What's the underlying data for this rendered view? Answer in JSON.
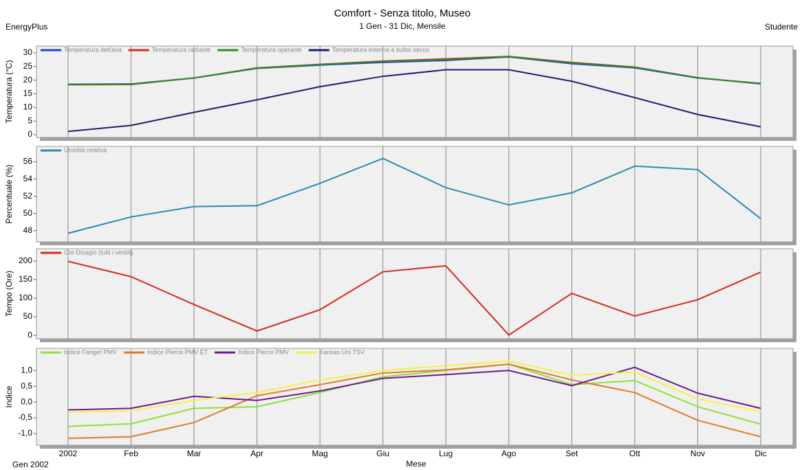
{
  "header": {
    "title": "Comfort - Senza titolo, Museo",
    "subtitle": "1 Gen - 31 Dic, Mensile",
    "left": "EnergyPlus",
    "right": "Studente",
    "footer": "Gen 2002"
  },
  "chart_data": [
    {
      "type": "line",
      "ylabel": "Temperatura (°C)",
      "ylim": [
        -1,
        32.5
      ],
      "yticks": [
        0,
        5,
        10,
        15,
        20,
        25,
        30
      ],
      "series": [
        {
          "name": "Temperatura dell'aria",
          "color": "#1f3fd6",
          "values": [
            18.5,
            18.6,
            20.8,
            24.3,
            25.5,
            26.5,
            27.2,
            28.5,
            26,
            24.5,
            20.8,
            18.8
          ]
        },
        {
          "name": "Temperatura radiante",
          "color": "#d42a1e",
          "values": [
            18.3,
            18.4,
            20.8,
            24.5,
            25.8,
            27,
            27.8,
            28.7,
            26.5,
            24.8,
            20.9,
            18.6
          ]
        },
        {
          "name": "Temperatura operante",
          "color": "#2a8a2a",
          "values": [
            18.4,
            18.5,
            20.8,
            24.4,
            25.7,
            26.8,
            27.5,
            28.6,
            26.3,
            24.7,
            20.9,
            18.7
          ]
        },
        {
          "name": "Temperatura esterna a bulbo secco",
          "color": "#1a1f6e",
          "values": [
            1.2,
            3.4,
            8.2,
            12.8,
            17.6,
            21.4,
            23.8,
            23.8,
            19.6,
            13.6,
            7.4,
            2.9
          ]
        }
      ]
    },
    {
      "type": "line",
      "ylabel": "Percentuale (%)",
      "ylim": [
        46.7,
        57.8
      ],
      "yticks": [
        48,
        50,
        52,
        54,
        56
      ],
      "series": [
        {
          "name": "Umidità relativa",
          "color": "#2a8ab0",
          "values": [
            47.7,
            49.6,
            50.8,
            50.9,
            53.5,
            56.4,
            53,
            51,
            52.4,
            55.5,
            55.1,
            49.4
          ]
        }
      ]
    },
    {
      "type": "line",
      "ylabel": "Tempo (Ore)",
      "ylim": [
        -9,
        233
      ],
      "yticks": [
        0,
        50,
        100,
        150,
        200
      ],
      "series": [
        {
          "name": "Ore Disagio (tutti i vestiti)",
          "color": "#d42a1e",
          "values": [
            199,
            158,
            83,
            12,
            69,
            171,
            187,
            1,
            113,
            52,
            96,
            170
          ]
        }
      ]
    },
    {
      "type": "line",
      "ylabel": "Indice",
      "ylim": [
        -1.37,
        1.7
      ],
      "yticks": [
        {
          "value": -1,
          "label": "-1,0"
        },
        {
          "value": -0.5,
          "label": "-0,5"
        },
        {
          "value": 0,
          "label": "0,0"
        },
        {
          "value": 0.5,
          "label": "0,5"
        },
        {
          "value": 1,
          "label": "1,0"
        }
      ],
      "xlabel": "Mese",
      "categories": [
        "2002",
        "Feb",
        "Mar",
        "Apr",
        "Mag",
        "Giu",
        "Lug",
        "Ago",
        "Set",
        "Ott",
        "Nov",
        "Dic"
      ],
      "series": [
        {
          "name": "Indice Fanger PMV",
          "color": "#8fe03a",
          "values": [
            -0.77,
            -0.69,
            -0.2,
            -0.15,
            0.3,
            0.8,
            1.0,
            1.2,
            0.55,
            0.68,
            -0.15,
            -0.7
          ]
        },
        {
          "name": "Indice Pierce PMV ET",
          "color": "#e07a28",
          "values": [
            -1.15,
            -1.1,
            -0.65,
            0.2,
            0.55,
            0.92,
            1.02,
            1.2,
            0.7,
            0.3,
            -0.58,
            -1.1
          ]
        },
        {
          "name": "Indice Pierce PMV",
          "color": "#6a1a8a",
          "values": [
            -0.25,
            -0.2,
            0.18,
            0.05,
            0.35,
            0.75,
            0.87,
            1.0,
            0.52,
            1.1,
            0.28,
            -0.2
          ]
        },
        {
          "name": "Kansas Uni TSV",
          "color": "#f5f04a",
          "values": [
            -0.32,
            -0.28,
            0.05,
            0.3,
            0.7,
            1.0,
            1.15,
            1.3,
            0.85,
            0.95,
            0.1,
            -0.3
          ]
        }
      ]
    }
  ]
}
